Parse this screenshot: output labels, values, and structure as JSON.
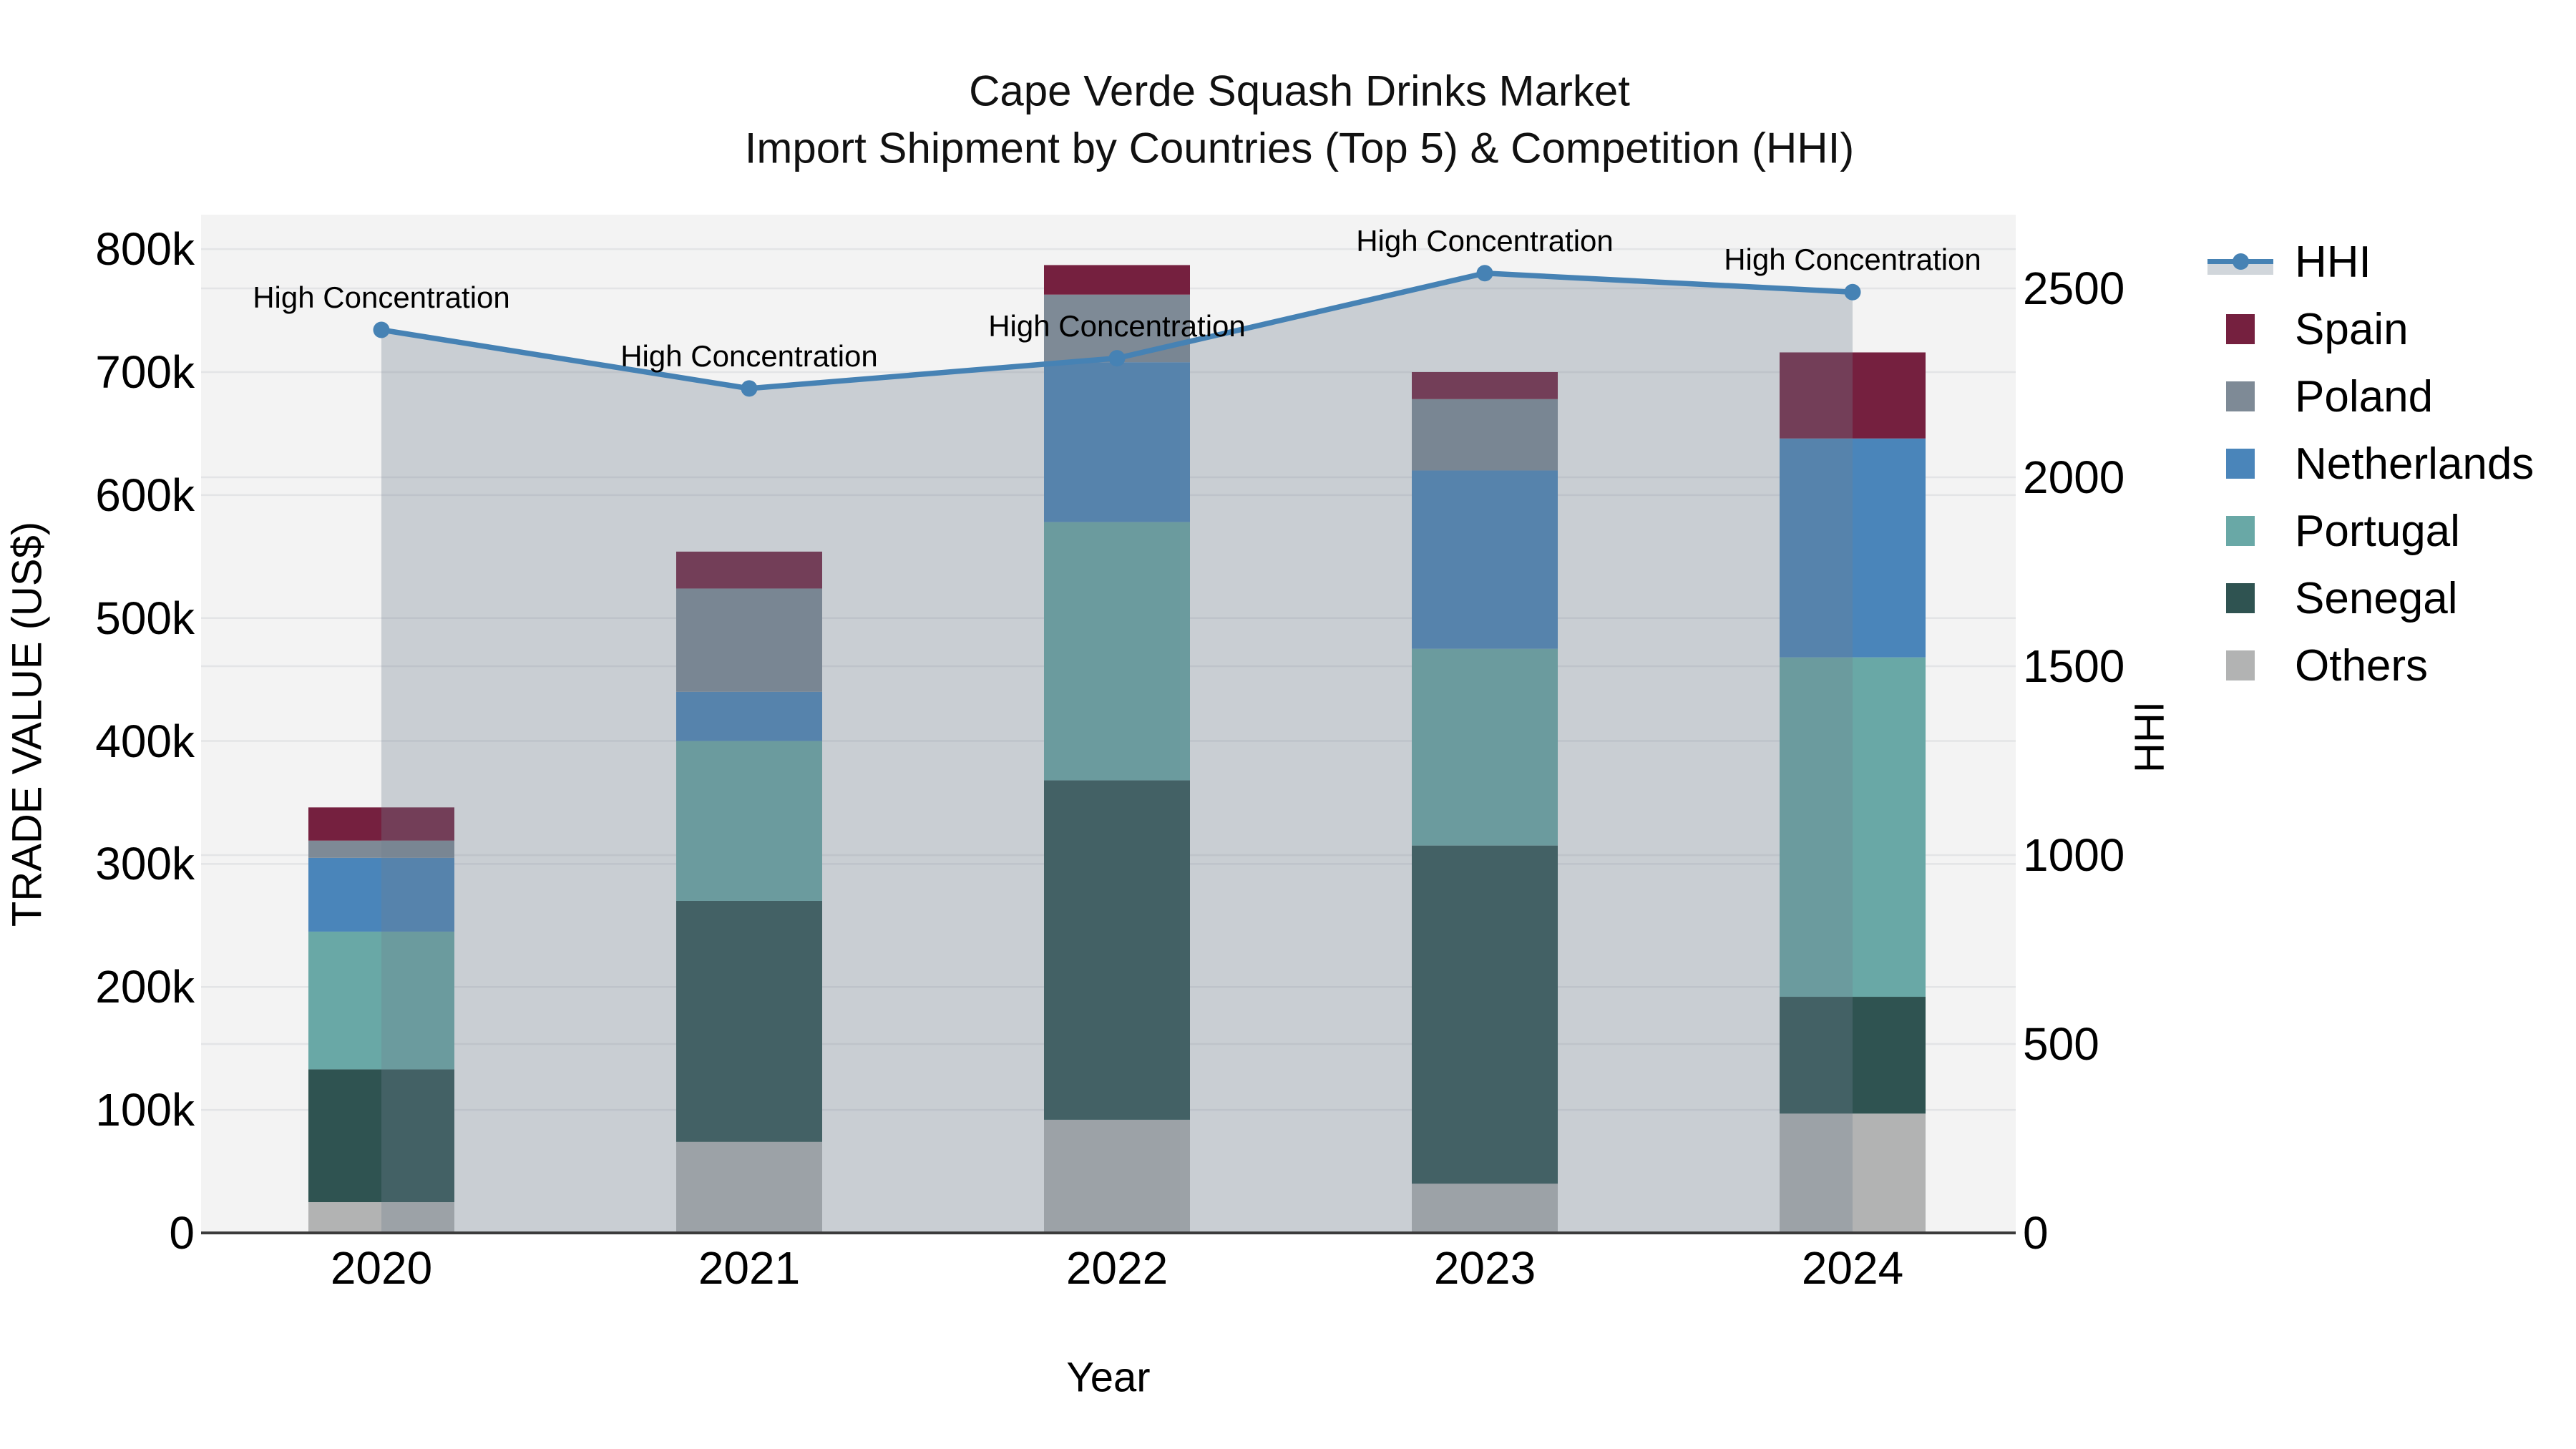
{
  "title": {
    "line1": "Cape Verde Squash Drinks Market",
    "line2": "Import Shipment by Countries (Top 5) & Competition (HHI)"
  },
  "axes": {
    "x_label": "Year",
    "y_left_label": "TRADE VALUE (US$)",
    "y_right_label": "HHI",
    "left_ticks": [
      {
        "label": "0",
        "value": 0
      },
      {
        "label": "100k",
        "value": 100000
      },
      {
        "label": "200k",
        "value": 200000
      },
      {
        "label": "300k",
        "value": 300000
      },
      {
        "label": "400k",
        "value": 400000
      },
      {
        "label": "500k",
        "value": 500000
      },
      {
        "label": "600k",
        "value": 600000
      },
      {
        "label": "700k",
        "value": 700000
      },
      {
        "label": "800k",
        "value": 800000
      }
    ],
    "right_ticks": [
      {
        "label": "0",
        "value": 0
      },
      {
        "label": "500",
        "value": 500
      },
      {
        "label": "1000",
        "value": 1000
      },
      {
        "label": "1500",
        "value": 1500
      },
      {
        "label": "2000",
        "value": 2000
      },
      {
        "label": "2500",
        "value": 2500
      }
    ]
  },
  "chart_data": {
    "type": "bar+line",
    "title": "Cape Verde Squash Drinks Market — Import Shipment by Countries (Top 5) & Competition (HHI)",
    "xlabel": "Year",
    "ylabel": "TRADE VALUE (US$)",
    "ylabel_right": "HHI",
    "categories": [
      "2020",
      "2021",
      "2022",
      "2023",
      "2024"
    ],
    "stack_order": "bottom_to_top",
    "series": [
      {
        "name": "Others",
        "color": "#B2B3B3",
        "values": [
          25000,
          74000,
          92000,
          40000,
          97000
        ]
      },
      {
        "name": "Senegal",
        "color": "#2F5351",
        "values": [
          108000,
          196000,
          276000,
          275000,
          95000
        ]
      },
      {
        "name": "Portugal",
        "color": "#69A8A6",
        "values": [
          112000,
          130000,
          210000,
          160000,
          276000
        ]
      },
      {
        "name": "Netherlands",
        "color": "#4A85BA",
        "values": [
          60000,
          40000,
          130000,
          145000,
          178000
        ]
      },
      {
        "name": "Poland",
        "color": "#7E8A96",
        "values": [
          14000,
          84000,
          55000,
          58000,
          0
        ]
      },
      {
        "name": "Spain",
        "color": "#75203F",
        "values": [
          27000,
          30000,
          24000,
          22000,
          70000
        ]
      }
    ],
    "bar_totals": [
      346000,
      554000,
      787000,
      700000,
      716000
    ],
    "line_series": {
      "name": "HHI",
      "color": "#4682B4",
      "area_color": "rgba(112,128,144,0.32)",
      "values": [
        2390,
        2235,
        2315,
        2540,
        2490
      ]
    },
    "annotations": [
      "High Concentration",
      "High Concentration",
      "High Concentration",
      "High Concentration",
      "High Concentration"
    ],
    "ylim_left": [
      0,
      828000
    ],
    "ylim_right": [
      0,
      2695
    ],
    "grid": true,
    "legend_position": "right"
  },
  "legend": {
    "items": [
      {
        "label": "HHI",
        "type": "line",
        "color": "#4682B4",
        "band_color": "rgba(112,128,144,0.32)"
      },
      {
        "label": "Spain",
        "type": "patch",
        "color": "#75203F"
      },
      {
        "label": "Poland",
        "type": "patch",
        "color": "#7E8A96"
      },
      {
        "label": "Netherlands",
        "type": "patch",
        "color": "#4A85BA"
      },
      {
        "label": "Portugal",
        "type": "patch",
        "color": "#69A8A6"
      },
      {
        "label": "Senegal",
        "type": "patch",
        "color": "#2F5351"
      },
      {
        "label": "Others",
        "type": "patch",
        "color": "#B2B3B3"
      }
    ]
  },
  "colors": {
    "background": "#FFFFFF",
    "plot_background": "#F3F3F3",
    "gridline": "#E3E4E6",
    "axis_line": "#3B3B3B",
    "text": "#000000"
  }
}
